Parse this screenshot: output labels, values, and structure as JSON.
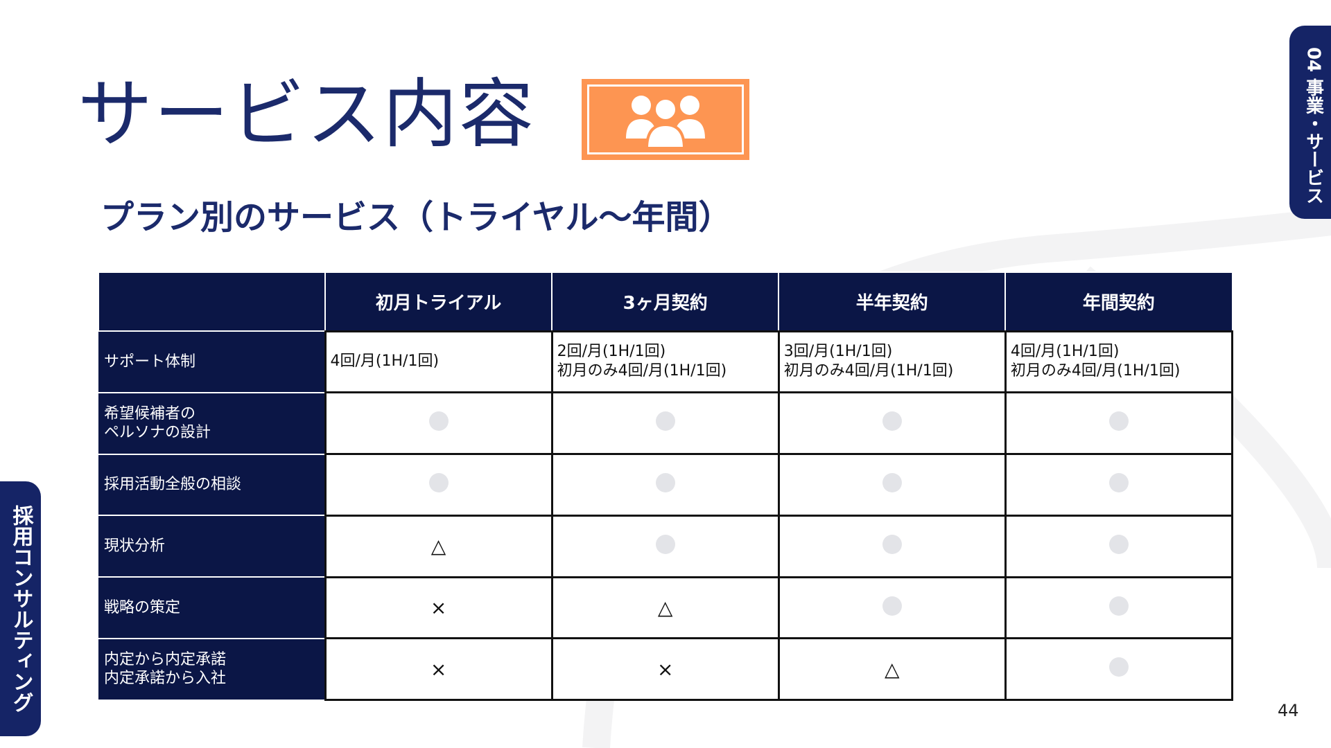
{
  "title": "サービス内容",
  "subtitle": "プラン別のサービス（トライヤル～年間）",
  "side_tab_right": "04 事業・サービス",
  "side_tab_left": "採用コンサルティング",
  "page_number": "44",
  "colors": {
    "navy": "#0b1646",
    "title": "#1b2a6b",
    "accent": "#fd9552",
    "dot": "#e3e4e8"
  },
  "icon": "people-group-icon",
  "table": {
    "columns": [
      "",
      "初月トライアル",
      "3ヶ月契約",
      "半年契約",
      "年間契約"
    ],
    "rows": [
      {
        "label": [
          "サポート体制"
        ],
        "cells": [
          [
            "4回/月(1H/1回)"
          ],
          [
            "2回/月(1H/1回)",
            "初月のみ4回/月(1H/1回)"
          ],
          [
            "3回/月(1H/1回)",
            "初月のみ4回/月(1H/1回)"
          ],
          [
            "4回/月(1H/1回)",
            "初月のみ4回/月(1H/1回)"
          ]
        ]
      },
      {
        "label": [
          "希望候補者の",
          "ペルソナの設計"
        ],
        "cells": [
          "●",
          "●",
          "●",
          "●"
        ]
      },
      {
        "label": [
          "採用活動全般の相談"
        ],
        "cells": [
          "●",
          "●",
          "●",
          "●"
        ]
      },
      {
        "label": [
          "現状分析"
        ],
        "cells": [
          "△",
          "●",
          "●",
          "●"
        ]
      },
      {
        "label": [
          "戦略の策定"
        ],
        "cells": [
          "×",
          "△",
          "●",
          "●"
        ]
      },
      {
        "label": [
          "内定から内定承諾",
          "内定承諾から入社"
        ],
        "cells": [
          "×",
          "×",
          "△",
          "●"
        ]
      }
    ]
  }
}
